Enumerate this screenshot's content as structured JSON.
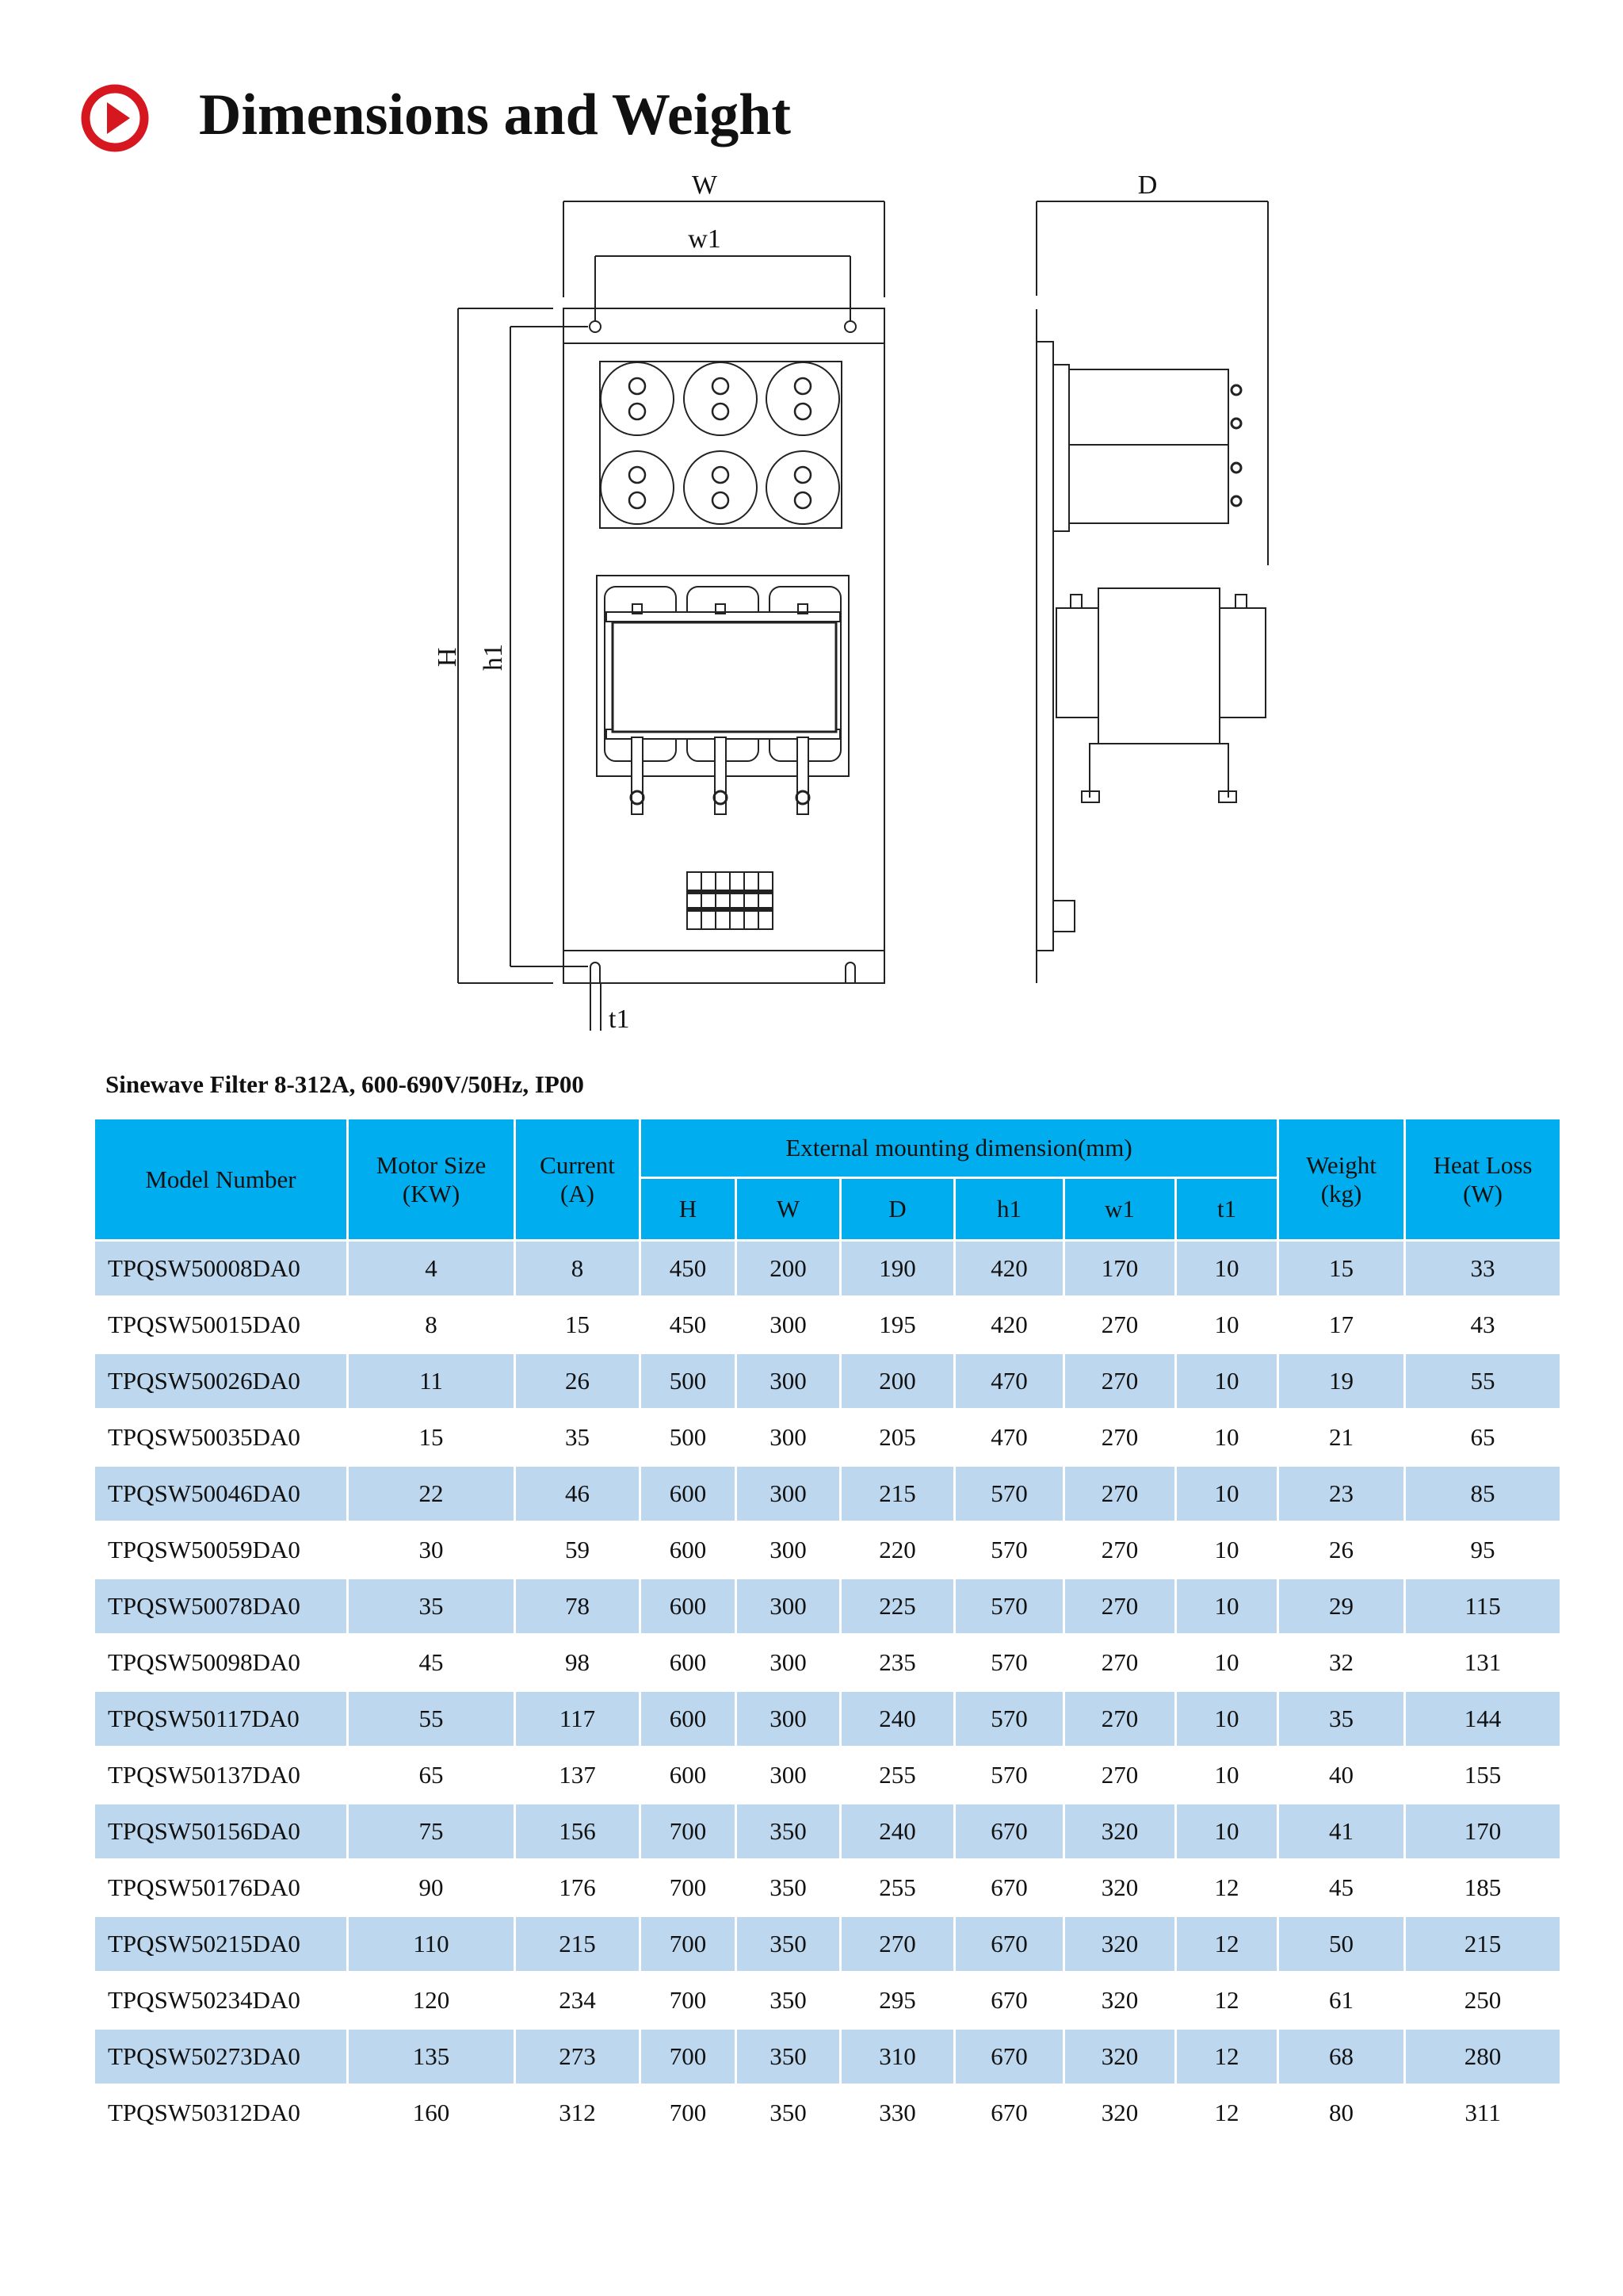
{
  "header": {
    "title": "Dimensions and Weight",
    "icon": "play-circle-icon",
    "icon_color": "#D7171F"
  },
  "drawing": {
    "front_labels": {
      "W": "W",
      "w1": "w1",
      "H": "H",
      "h1": "h1",
      "t1": "t1"
    },
    "side_labels": {
      "D": "D"
    }
  },
  "table": {
    "caption": "Sinewave Filter 8-312A, 600-690V/50Hz, IP00",
    "header_color": "#00AEEF",
    "band_color": "#BDD7EE",
    "headers": {
      "model": "Model Number",
      "motor_size": [
        "Motor Size",
        "(KW)"
      ],
      "current": [
        "Current",
        "(A)"
      ],
      "external": "External mounting dimension(mm)",
      "dims": [
        "H",
        "W",
        "D",
        "h1",
        "w1",
        "t1"
      ],
      "weight": [
        "Weight",
        "(kg)"
      ],
      "heat_loss": [
        "Heat Loss",
        "(W)"
      ]
    },
    "rows": [
      [
        "TPQSW50008DA0",
        "4",
        "8",
        "450",
        "200",
        "190",
        "420",
        "170",
        "10",
        "15",
        "33"
      ],
      [
        "TPQSW50015DA0",
        "8",
        "15",
        "450",
        "300",
        "195",
        "420",
        "270",
        "10",
        "17",
        "43"
      ],
      [
        "TPQSW50026DA0",
        "11",
        "26",
        "500",
        "300",
        "200",
        "470",
        "270",
        "10",
        "19",
        "55"
      ],
      [
        "TPQSW50035DA0",
        "15",
        "35",
        "500",
        "300",
        "205",
        "470",
        "270",
        "10",
        "21",
        "65"
      ],
      [
        "TPQSW50046DA0",
        "22",
        "46",
        "600",
        "300",
        "215",
        "570",
        "270",
        "10",
        "23",
        "85"
      ],
      [
        "TPQSW50059DA0",
        "30",
        "59",
        "600",
        "300",
        "220",
        "570",
        "270",
        "10",
        "26",
        "95"
      ],
      [
        "TPQSW50078DA0",
        "35",
        "78",
        "600",
        "300",
        "225",
        "570",
        "270",
        "10",
        "29",
        "115"
      ],
      [
        "TPQSW50098DA0",
        "45",
        "98",
        "600",
        "300",
        "235",
        "570",
        "270",
        "10",
        "32",
        "131"
      ],
      [
        "TPQSW50117DA0",
        "55",
        "117",
        "600",
        "300",
        "240",
        "570",
        "270",
        "10",
        "35",
        "144"
      ],
      [
        "TPQSW50137DA0",
        "65",
        "137",
        "600",
        "300",
        "255",
        "570",
        "270",
        "10",
        "40",
        "155"
      ],
      [
        "TPQSW50156DA0",
        "75",
        "156",
        "700",
        "350",
        "240",
        "670",
        "320",
        "10",
        "41",
        "170"
      ],
      [
        "TPQSW50176DA0",
        "90",
        "176",
        "700",
        "350",
        "255",
        "670",
        "320",
        "12",
        "45",
        "185"
      ],
      [
        "TPQSW50215DA0",
        "110",
        "215",
        "700",
        "350",
        "270",
        "670",
        "320",
        "12",
        "50",
        "215"
      ],
      [
        "TPQSW50234DA0",
        "120",
        "234",
        "700",
        "350",
        "295",
        "670",
        "320",
        "12",
        "61",
        "250"
      ],
      [
        "TPQSW50273DA0",
        "135",
        "273",
        "700",
        "350",
        "310",
        "670",
        "320",
        "12",
        "68",
        "280"
      ],
      [
        "TPQSW50312DA0",
        "160",
        "312",
        "700",
        "350",
        "330",
        "670",
        "320",
        "12",
        "80",
        "311"
      ]
    ]
  }
}
